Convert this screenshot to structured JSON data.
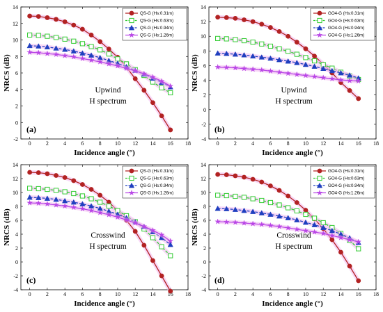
{
  "chart_data": [
    {
      "type": "line",
      "panel_label": "(a)",
      "annotation": [
        "Upwind",
        "H spectrum"
      ],
      "xlabel": "Incidence angle (°)",
      "ylabel": "NRCS (dB)",
      "xlim": [
        -1,
        18
      ],
      "ylim": [
        -2,
        14
      ],
      "xticks": [
        0,
        2,
        4,
        6,
        8,
        10,
        12,
        14,
        16,
        18
      ],
      "yticks": [
        -2,
        0,
        2,
        4,
        6,
        8,
        10,
        12,
        14
      ],
      "legend_position": "top-right",
      "grid": false,
      "x": [
        0,
        1,
        2,
        3,
        4,
        5,
        6,
        7,
        8,
        9,
        10,
        11,
        12,
        13,
        14,
        15,
        16
      ],
      "series": [
        {
          "name": "QS-G (Hs:0.31m)",
          "color": "#b22222",
          "marker": "circle",
          "line": "solid",
          "values": [
            12.9,
            12.85,
            12.7,
            12.5,
            12.2,
            11.8,
            11.3,
            10.6,
            9.8,
            8.9,
            7.9,
            6.7,
            5.3,
            3.9,
            2.4,
            0.8,
            -0.9
          ]
        },
        {
          "name": "QS-G (Hs:0.63m)",
          "color": "#33cc33",
          "marker": "square",
          "line": "dashed",
          "values": [
            10.6,
            10.55,
            10.45,
            10.3,
            10.1,
            9.85,
            9.55,
            9.2,
            8.8,
            8.3,
            7.7,
            7.1,
            6.4,
            5.7,
            4.9,
            4.2,
            3.6
          ]
        },
        {
          "name": "QS-G (Hs:0.94m)",
          "color": "#1f3fbf",
          "marker": "triangle",
          "line": "dashed",
          "values": [
            9.3,
            9.25,
            9.15,
            9.0,
            8.85,
            8.65,
            8.4,
            8.15,
            7.85,
            7.5,
            7.15,
            6.75,
            6.3,
            5.85,
            5.35,
            4.85,
            4.3
          ]
        },
        {
          "name": "QS-G (Hs:1.26m)",
          "color": "#b844e6",
          "marker": "star",
          "line": "solid",
          "values": [
            8.5,
            8.45,
            8.35,
            8.25,
            8.1,
            7.95,
            7.75,
            7.55,
            7.35,
            7.1,
            6.85,
            6.55,
            6.25,
            5.9,
            5.5,
            5.0,
            4.4
          ]
        }
      ]
    },
    {
      "type": "line",
      "panel_label": "(b)",
      "annotation": [
        "Upwind",
        "H spectrum"
      ],
      "xlabel": "Incidence angle (°)",
      "ylabel": "NRCS (dB)",
      "xlim": [
        -1,
        18
      ],
      "ylim": [
        -4,
        14
      ],
      "xticks": [
        0,
        2,
        4,
        6,
        8,
        10,
        12,
        14,
        16,
        18
      ],
      "yticks": [
        -4,
        -2,
        0,
        2,
        4,
        6,
        8,
        10,
        12,
        14
      ],
      "legend_position": "top-right",
      "grid": false,
      "x": [
        0,
        1,
        2,
        3,
        4,
        5,
        6,
        7,
        8,
        9,
        10,
        11,
        12,
        13,
        14,
        15,
        16
      ],
      "series": [
        {
          "name": "GO4-G (Hs:0.31m)",
          "color": "#b22222",
          "marker": "circle",
          "line": "solid",
          "values": [
            12.6,
            12.55,
            12.45,
            12.25,
            12.0,
            11.65,
            11.2,
            10.65,
            10.0,
            9.2,
            8.3,
            7.3,
            6.2,
            5.0,
            3.7,
            2.6,
            1.5
          ]
        },
        {
          "name": "GO4-G (Hs:0.63m)",
          "color": "#33cc33",
          "marker": "square",
          "line": "dashed",
          "values": [
            9.7,
            9.65,
            9.55,
            9.4,
            9.2,
            8.95,
            8.65,
            8.3,
            7.95,
            7.55,
            7.1,
            6.65,
            6.15,
            5.65,
            5.1,
            4.6,
            4.1
          ]
        },
        {
          "name": "GO4-G (Hs:0.94m)",
          "color": "#1f3fbf",
          "marker": "triangle",
          "line": "dashed",
          "values": [
            7.7,
            7.65,
            7.55,
            7.45,
            7.3,
            7.15,
            7.0,
            6.8,
            6.6,
            6.4,
            6.15,
            5.9,
            5.6,
            5.3,
            5.0,
            4.7,
            4.3
          ]
        },
        {
          "name": "GO4-G (Hs:1.26m)",
          "color": "#b844e6",
          "marker": "star",
          "line": "solid",
          "values": [
            5.8,
            5.75,
            5.7,
            5.6,
            5.5,
            5.4,
            5.25,
            5.1,
            4.95,
            4.8,
            4.65,
            4.5,
            4.35,
            4.2,
            4.05,
            3.95,
            3.9
          ]
        }
      ]
    },
    {
      "type": "line",
      "panel_label": "(c)",
      "annotation": [
        "Crosswind",
        "H spectrum"
      ],
      "xlabel": "Incidence angle (°)",
      "ylabel": "NRCS (dB)",
      "xlim": [
        -1,
        18
      ],
      "ylim": [
        -4,
        14
      ],
      "xticks": [
        0,
        2,
        4,
        6,
        8,
        10,
        12,
        14,
        16,
        18
      ],
      "yticks": [
        -4,
        -2,
        0,
        2,
        4,
        6,
        8,
        10,
        12,
        14
      ],
      "legend_position": "top-right",
      "grid": false,
      "x": [
        0,
        1,
        2,
        3,
        4,
        5,
        6,
        7,
        8,
        9,
        10,
        11,
        12,
        13,
        14,
        15,
        16
      ],
      "series": [
        {
          "name": "QS-G (Hs:0.31m)",
          "color": "#b22222",
          "marker": "circle",
          "line": "solid",
          "values": [
            12.9,
            12.85,
            12.7,
            12.45,
            12.15,
            11.7,
            11.15,
            10.45,
            9.6,
            8.6,
            7.4,
            6.0,
            4.4,
            2.4,
            0.2,
            -2.0,
            -4.2
          ]
        },
        {
          "name": "QS-G (Hs:0.63m)",
          "color": "#33cc33",
          "marker": "square",
          "line": "dashed",
          "values": [
            10.6,
            10.55,
            10.45,
            10.3,
            10.1,
            9.85,
            9.5,
            9.1,
            8.6,
            8.05,
            7.4,
            6.65,
            5.8,
            4.75,
            3.5,
            2.2,
            0.9
          ]
        },
        {
          "name": "QS-G (Hs:0.94m)",
          "color": "#1f3fbf",
          "marker": "triangle",
          "line": "dashed",
          "values": [
            9.3,
            9.25,
            9.15,
            9.0,
            8.8,
            8.6,
            8.35,
            8.05,
            7.7,
            7.3,
            6.85,
            6.35,
            5.75,
            5.1,
            4.35,
            3.5,
            2.5
          ]
        },
        {
          "name": "QS-G (Hs:1.26m)",
          "color": "#b844e6",
          "marker": "star",
          "line": "solid",
          "values": [
            8.5,
            8.45,
            8.35,
            8.2,
            8.05,
            7.85,
            7.65,
            7.4,
            7.1,
            6.8,
            6.45,
            6.05,
            5.6,
            5.1,
            4.55,
            3.9,
            3.0
          ]
        }
      ]
    },
    {
      "type": "line",
      "panel_label": "(d)",
      "annotation": [
        "Crosswind",
        "H spectrum"
      ],
      "xlabel": "Incidence angle (°)",
      "ylabel": "NRCS (dB)",
      "xlim": [
        -1,
        18
      ],
      "ylim": [
        -4,
        14
      ],
      "xticks": [
        0,
        2,
        4,
        6,
        8,
        10,
        12,
        14,
        16,
        18
      ],
      "yticks": [
        -4,
        -2,
        0,
        2,
        4,
        6,
        8,
        10,
        12,
        14
      ],
      "legend_position": "top-right",
      "grid": false,
      "x": [
        0,
        1,
        2,
        3,
        4,
        5,
        6,
        7,
        8,
        9,
        10,
        11,
        12,
        13,
        14,
        15,
        16
      ],
      "series": [
        {
          "name": "GO4-G (Hs:0.31m)",
          "color": "#b22222",
          "marker": "circle",
          "line": "solid",
          "values": [
            12.6,
            12.55,
            12.4,
            12.2,
            11.9,
            11.5,
            10.95,
            10.3,
            9.5,
            8.55,
            7.45,
            6.2,
            4.8,
            3.2,
            1.4,
            -0.6,
            -2.7
          ]
        },
        {
          "name": "GO4-G (Hs:0.63m)",
          "color": "#33cc33",
          "marker": "square",
          "line": "dashed",
          "values": [
            9.6,
            9.55,
            9.45,
            9.3,
            9.1,
            8.85,
            8.55,
            8.2,
            7.8,
            7.35,
            6.85,
            6.3,
            5.65,
            4.95,
            4.1,
            3.1,
            1.9
          ]
        },
        {
          "name": "GO4-G (Hs:0.94m)",
          "color": "#1f3fbf",
          "marker": "triangle",
          "line": "dashed",
          "values": [
            7.7,
            7.65,
            7.55,
            7.4,
            7.25,
            7.05,
            6.85,
            6.6,
            6.35,
            6.05,
            5.7,
            5.35,
            4.95,
            4.5,
            4.0,
            3.45,
            2.8
          ]
        },
        {
          "name": "GO4-G (Hs:1.26m)",
          "color": "#b844e6",
          "marker": "star",
          "line": "solid",
          "values": [
            5.8,
            5.75,
            5.7,
            5.6,
            5.5,
            5.4,
            5.25,
            5.1,
            4.9,
            4.7,
            4.5,
            4.3,
            4.1,
            3.8,
            3.5,
            3.2,
            2.9
          ]
        }
      ]
    }
  ]
}
